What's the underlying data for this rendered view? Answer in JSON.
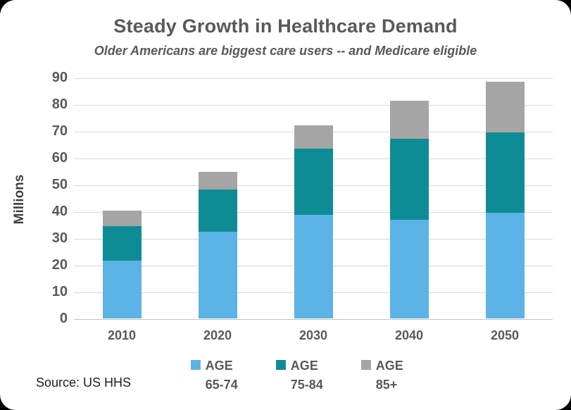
{
  "window": {
    "background_color": "#000000",
    "card_color": "#ffffff"
  },
  "header": {
    "title": "Steady Growth in Healthcare Demand",
    "subtitle": "Older Americans are biggest care users -- and Medicare eligible"
  },
  "chart_data": {
    "type": "bar",
    "stacked": true,
    "title": "Steady Growth in Healthcare Demand",
    "subtitle": "Older Americans are biggest care users -- and Medicare eligible",
    "xlabel": "",
    "ylabel": "Millions",
    "ylim": [
      0,
      90
    ],
    "ytick_step": 10,
    "yticks": [
      0,
      10,
      20,
      30,
      40,
      50,
      60,
      70,
      80,
      90
    ],
    "grid": true,
    "legend_position": "bottom",
    "categories": [
      "2010",
      "2020",
      "2030",
      "2040",
      "2050"
    ],
    "series": [
      {
        "name": "AGE 65-74",
        "color": "#5BB4E5",
        "values": [
          21.7,
          32.3,
          38.8,
          36.9,
          39.5
        ]
      },
      {
        "name": "AGE 75-84",
        "color": "#0E8C95",
        "values": [
          12.7,
          15.9,
          24.6,
          30.2,
          30.0
        ]
      },
      {
        "name": "AGE 85+",
        "color": "#A5A5A5",
        "values": [
          5.8,
          6.6,
          8.7,
          14.2,
          19.0
        ]
      }
    ],
    "stack_totals": [
      40.2,
      54.8,
      72.1,
      81.2,
      88.5
    ]
  },
  "legend": {
    "items": [
      {
        "line1": "AGE",
        "line2": "65-74"
      },
      {
        "line1": "AGE",
        "line2": "75-84"
      },
      {
        "line1": "AGE",
        "line2": "85+"
      }
    ]
  },
  "colors": {
    "age_65_74": "#5BB4E5",
    "age_75_84": "#0E8C95",
    "age_85_plus": "#A5A5A5",
    "text_gray": "#595959",
    "gridline": "#D9D9D9"
  },
  "footer": {
    "source": "Source: US HHS"
  }
}
